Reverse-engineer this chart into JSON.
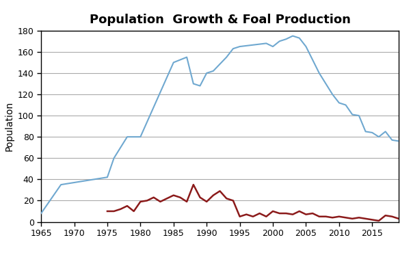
{
  "title": "Population  Growth & Foal Production",
  "ylabel": "Population",
  "background_color": "#ffffff",
  "grid_color": "#aaaaaa",
  "blue_color": "#6fa8d0",
  "red_color": "#8b1a1a",
  "xlim": [
    1965,
    2019
  ],
  "ylim": [
    0,
    180
  ],
  "yticks": [
    0,
    20,
    40,
    60,
    80,
    100,
    120,
    140,
    160,
    180
  ],
  "xticks": [
    1965,
    1970,
    1975,
    1980,
    1985,
    1990,
    1995,
    2000,
    2005,
    2010,
    2015
  ],
  "population_x": [
    1965,
    1968,
    1975,
    1976,
    1978,
    1980,
    1985,
    1987,
    1988,
    1989,
    1990,
    1991,
    1993,
    1994,
    1995,
    1999,
    2000,
    2001,
    2002,
    2003,
    2004,
    2005,
    2007,
    2009,
    2010,
    2011,
    2012,
    2013,
    2014,
    2015,
    2016,
    2017,
    2018,
    2019
  ],
  "population_y": [
    8,
    35,
    42,
    60,
    80,
    80,
    150,
    155,
    130,
    128,
    140,
    142,
    155,
    163,
    165,
    168,
    165,
    170,
    172,
    175,
    173,
    165,
    140,
    120,
    112,
    110,
    101,
    100,
    85,
    84,
    80,
    85,
    77,
    76
  ],
  "foal_x": [
    1975,
    1976,
    1977,
    1978,
    1979,
    1980,
    1981,
    1982,
    1983,
    1984,
    1985,
    1986,
    1987,
    1988,
    1989,
    1990,
    1991,
    1992,
    1993,
    1994,
    1995,
    1996,
    1997,
    1998,
    1999,
    2000,
    2001,
    2002,
    2003,
    2004,
    2005,
    2006,
    2007,
    2008,
    2009,
    2010,
    2011,
    2012,
    2013,
    2014,
    2015,
    2016,
    2017,
    2018,
    2019
  ],
  "foal_y": [
    10,
    10,
    12,
    15,
    10,
    19,
    20,
    23,
    19,
    22,
    25,
    23,
    19,
    35,
    23,
    19,
    25,
    29,
    22,
    20,
    5,
    7,
    5,
    8,
    5,
    10,
    8,
    8,
    7,
    10,
    7,
    8,
    5,
    5,
    4,
    5,
    4,
    3,
    4,
    3,
    2,
    1,
    6,
    5,
    3
  ]
}
